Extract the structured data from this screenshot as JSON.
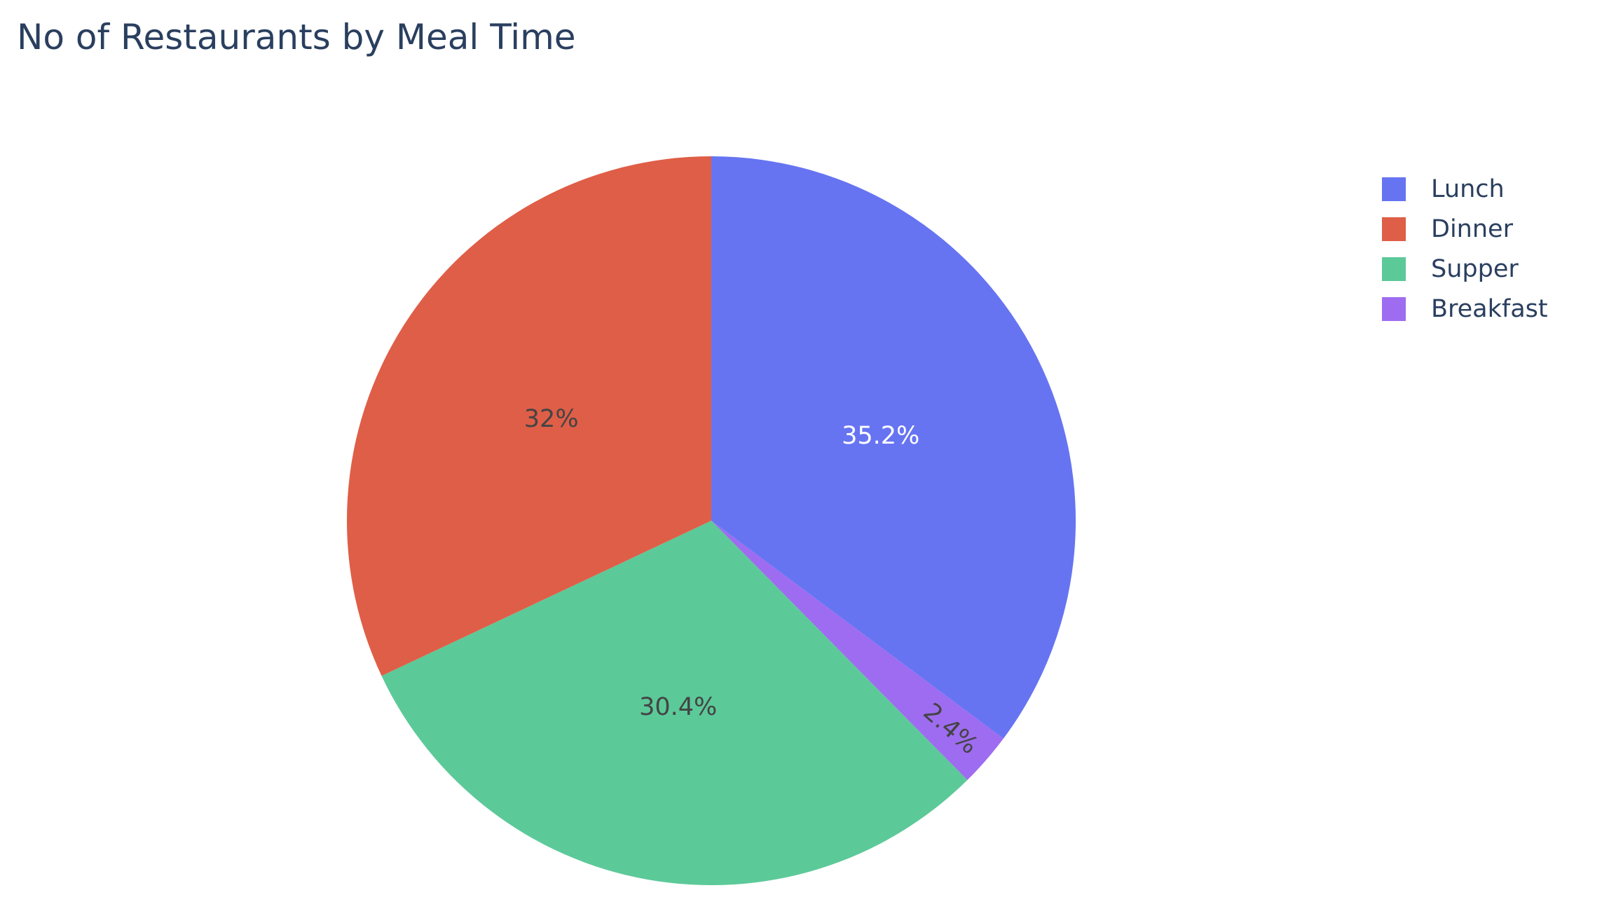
{
  "chart_data": {
    "type": "pie",
    "title": "No of Restaurants by Meal Time",
    "slices": [
      {
        "label": "Lunch",
        "percent": 35.2,
        "percent_label": "35.2%",
        "color": "#636EFA",
        "text_color": "#ffffff"
      },
      {
        "label": "Breakfast",
        "percent": 2.4,
        "percent_label": "2.4%",
        "color": "#AB63FA",
        "text_color": "#444444"
      },
      {
        "label": "Supper",
        "percent": 30.4,
        "percent_label": "30.4%",
        "color": "#00CC96",
        "text_color": "#444444"
      },
      {
        "label": "Dinner",
        "percent": 32.0,
        "percent_label": "32%",
        "color": "#EF553B",
        "text_color": "#444444"
      }
    ],
    "legend": {
      "placement": "top-right",
      "items": [
        {
          "label": "Lunch",
          "color": "#636EFA"
        },
        {
          "label": "Dinner",
          "color": "#EF553B"
        },
        {
          "label": "Supper",
          "color": "#00CC96"
        },
        {
          "label": "Breakfast",
          "color": "#AB63FA"
        }
      ]
    },
    "title_color": "#2a3f5f",
    "slice_colors_render": {
      "Lunch": "#6674F2",
      "Dinner": "#DF5E47",
      "Supper": "#5CC999",
      "Breakfast": "#9E6CF0"
    }
  }
}
